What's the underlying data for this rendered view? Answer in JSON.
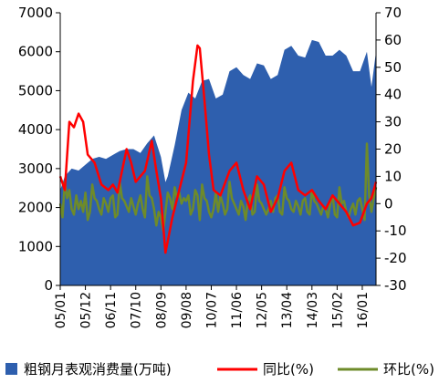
{
  "chart_data": {
    "type": "area",
    "title": "",
    "x_tick_labels": [
      "05/01",
      "05/12",
      "06/11",
      "07/10",
      "08/09",
      "09/08",
      "10/07",
      "11/06",
      "12/05",
      "13/04",
      "14/03",
      "15/02",
      "16/01"
    ],
    "x_start": "2005-01",
    "x_end": "2016-07",
    "left_axis": {
      "min": 0,
      "max": 7000,
      "ticks": [
        0,
        1000,
        2000,
        3000,
        4000,
        5000,
        6000,
        7000
      ]
    },
    "right_axis": {
      "min": -30,
      "max": 70,
      "ticks": [
        -30,
        -20,
        -10,
        0,
        10,
        20,
        30,
        40,
        50,
        60,
        70
      ]
    },
    "grid": false,
    "legend_position": "bottom",
    "series": [
      {
        "name": "粗钢月表观消费量(万吨)",
        "type": "area",
        "axis": "left",
        "color": "#2e5fae",
        "points": [
          [
            "2005-01",
            2450
          ],
          [
            "2005-03",
            2800
          ],
          [
            "2005-06",
            3000
          ],
          [
            "2005-09",
            2950
          ],
          [
            "2005-12",
            3100
          ],
          [
            "2006-03",
            3250
          ],
          [
            "2006-06",
            3300
          ],
          [
            "2006-09",
            3250
          ],
          [
            "2006-12",
            3350
          ],
          [
            "2007-03",
            3450
          ],
          [
            "2007-06",
            3500
          ],
          [
            "2007-09",
            3500
          ],
          [
            "2007-12",
            3400
          ],
          [
            "2008-03",
            3650
          ],
          [
            "2008-06",
            3850
          ],
          [
            "2008-09",
            3300
          ],
          [
            "2008-11",
            2650
          ],
          [
            "2008-12",
            2800
          ],
          [
            "2009-03",
            3600
          ],
          [
            "2009-06",
            4500
          ],
          [
            "2009-09",
            4950
          ],
          [
            "2009-12",
            4800
          ],
          [
            "2010-03",
            5250
          ],
          [
            "2010-06",
            5300
          ],
          [
            "2010-09",
            4800
          ],
          [
            "2010-12",
            4900
          ],
          [
            "2011-03",
            5500
          ],
          [
            "2011-06",
            5600
          ],
          [
            "2011-09",
            5400
          ],
          [
            "2011-12",
            5300
          ],
          [
            "2012-03",
            5700
          ],
          [
            "2012-06",
            5650
          ],
          [
            "2012-09",
            5300
          ],
          [
            "2012-12",
            5400
          ],
          [
            "2013-03",
            6050
          ],
          [
            "2013-06",
            6150
          ],
          [
            "2013-09",
            5900
          ],
          [
            "2013-12",
            5850
          ],
          [
            "2014-03",
            6300
          ],
          [
            "2014-06",
            6250
          ],
          [
            "2014-09",
            5900
          ],
          [
            "2014-12",
            5900
          ],
          [
            "2015-03",
            6050
          ],
          [
            "2015-06",
            5900
          ],
          [
            "2015-09",
            5500
          ],
          [
            "2015-12",
            5500
          ],
          [
            "2016-03",
            6000
          ],
          [
            "2016-05",
            5100
          ],
          [
            "2016-07",
            6000
          ]
        ]
      },
      {
        "name": "同比(%)",
        "type": "line",
        "axis": "right",
        "color": "#ff0000",
        "points": [
          [
            "2005-01",
            10
          ],
          [
            "2005-03",
            5
          ],
          [
            "2005-05",
            30
          ],
          [
            "2005-07",
            28
          ],
          [
            "2005-09",
            33
          ],
          [
            "2005-11",
            30
          ],
          [
            "2006-01",
            18
          ],
          [
            "2006-04",
            15
          ],
          [
            "2006-07",
            7
          ],
          [
            "2006-10",
            5
          ],
          [
            "2006-12",
            7
          ],
          [
            "2007-02",
            4
          ],
          [
            "2007-04",
            12
          ],
          [
            "2007-06",
            20
          ],
          [
            "2007-08",
            15
          ],
          [
            "2007-10",
            8
          ],
          [
            "2007-12",
            10
          ],
          [
            "2008-02",
            12
          ],
          [
            "2008-05",
            23
          ],
          [
            "2008-07",
            12
          ],
          [
            "2008-09",
            2
          ],
          [
            "2008-11",
            -18
          ],
          [
            "2009-02",
            -5
          ],
          [
            "2009-05",
            5
          ],
          [
            "2009-08",
            15
          ],
          [
            "2009-11",
            45
          ],
          [
            "2010-01",
            58
          ],
          [
            "2010-02",
            57
          ],
          [
            "2010-04",
            38
          ],
          [
            "2010-06",
            18
          ],
          [
            "2010-08",
            5
          ],
          [
            "2010-11",
            3
          ],
          [
            "2011-03",
            12
          ],
          [
            "2011-06",
            15
          ],
          [
            "2011-09",
            5
          ],
          [
            "2011-12",
            -2
          ],
          [
            "2012-03",
            10
          ],
          [
            "2012-06",
            7
          ],
          [
            "2012-09",
            -3
          ],
          [
            "2012-12",
            2
          ],
          [
            "2013-03",
            12
          ],
          [
            "2013-06",
            15
          ],
          [
            "2013-09",
            5
          ],
          [
            "2013-12",
            3
          ],
          [
            "2014-03",
            5
          ],
          [
            "2014-06",
            1
          ],
          [
            "2014-09",
            -2
          ],
          [
            "2014-12",
            3
          ],
          [
            "2015-03",
            0
          ],
          [
            "2015-06",
            -3
          ],
          [
            "2015-09",
            -8
          ],
          [
            "2015-12",
            -7
          ],
          [
            "2016-03",
            0
          ],
          [
            "2016-05",
            2
          ],
          [
            "2016-07",
            8
          ]
        ]
      },
      {
        "name": "环比(%)",
        "type": "line",
        "axis": "right",
        "color": "#6e8b2a",
        "points": [
          [
            "2005-01",
            0
          ],
          [
            "2005-02",
            -5
          ],
          [
            "2005-03",
            8
          ],
          [
            "2005-04",
            2
          ],
          [
            "2005-05",
            5
          ],
          [
            "2005-06",
            -2
          ],
          [
            "2005-07",
            -4
          ],
          [
            "2005-08",
            3
          ],
          [
            "2005-09",
            -2
          ],
          [
            "2005-10",
            1
          ],
          [
            "2005-11",
            -3
          ],
          [
            "2005-12",
            4
          ],
          [
            "2006-01",
            -6
          ],
          [
            "2006-02",
            -3
          ],
          [
            "2006-03",
            7
          ],
          [
            "2006-04",
            2
          ],
          [
            "2006-05",
            1
          ],
          [
            "2006-06",
            -2
          ],
          [
            "2006-07",
            -4
          ],
          [
            "2006-08",
            2
          ],
          [
            "2006-09",
            0
          ],
          [
            "2006-10",
            -3
          ],
          [
            "2006-11",
            2
          ],
          [
            "2006-12",
            3
          ],
          [
            "2007-01",
            -5
          ],
          [
            "2007-02",
            -4
          ],
          [
            "2007-03",
            8
          ],
          [
            "2007-04",
            2
          ],
          [
            "2007-05",
            1
          ],
          [
            "2007-06",
            -1
          ],
          [
            "2007-07",
            -3
          ],
          [
            "2007-08",
            2
          ],
          [
            "2007-09",
            -1
          ],
          [
            "2007-10",
            -4
          ],
          [
            "2007-11",
            0
          ],
          [
            "2007-12",
            3
          ],
          [
            "2008-01",
            -2
          ],
          [
            "2008-02",
            -5
          ],
          [
            "2008-03",
            10
          ],
          [
            "2008-04",
            3
          ],
          [
            "2008-05",
            2
          ],
          [
            "2008-06",
            -2
          ],
          [
            "2008-07",
            -8
          ],
          [
            "2008-08",
            -3
          ],
          [
            "2008-09",
            -5
          ],
          [
            "2008-10",
            -10
          ],
          [
            "2008-11",
            -3
          ],
          [
            "2008-12",
            4
          ],
          [
            "2009-01",
            2
          ],
          [
            "2009-02",
            -2
          ],
          [
            "2009-03",
            6
          ],
          [
            "2009-04",
            2
          ],
          [
            "2009-05",
            4
          ],
          [
            "2009-06",
            0
          ],
          [
            "2009-07",
            2
          ],
          [
            "2009-08",
            1
          ],
          [
            "2009-09",
            3
          ],
          [
            "2009-10",
            -4
          ],
          [
            "2009-11",
            -2
          ],
          [
            "2009-12",
            5
          ],
          [
            "2010-01",
            3
          ],
          [
            "2010-02",
            -6
          ],
          [
            "2010-03",
            7
          ],
          [
            "2010-04",
            2
          ],
          [
            "2010-05",
            1
          ],
          [
            "2010-06",
            -3
          ],
          [
            "2010-07",
            -5
          ],
          [
            "2010-08",
            -2
          ],
          [
            "2010-09",
            4
          ],
          [
            "2010-10",
            -3
          ],
          [
            "2010-11",
            3
          ],
          [
            "2010-12",
            0
          ],
          [
            "2011-01",
            -4
          ],
          [
            "2011-02",
            -2
          ],
          [
            "2011-03",
            8
          ],
          [
            "2011-04",
            2
          ],
          [
            "2011-05",
            0
          ],
          [
            "2011-06",
            -2
          ],
          [
            "2011-07",
            -4
          ],
          [
            "2011-08",
            1
          ],
          [
            "2011-09",
            -1
          ],
          [
            "2011-10",
            -6
          ],
          [
            "2011-11",
            1
          ],
          [
            "2011-12",
            3
          ],
          [
            "2012-01",
            -4
          ],
          [
            "2012-02",
            -3
          ],
          [
            "2012-03",
            7
          ],
          [
            "2012-04",
            1
          ],
          [
            "2012-05",
            0
          ],
          [
            "2012-06",
            -2
          ],
          [
            "2012-07",
            -4
          ],
          [
            "2012-08",
            -2
          ],
          [
            "2012-09",
            1
          ],
          [
            "2012-10",
            -3
          ],
          [
            "2012-11",
            2
          ],
          [
            "2012-12",
            3
          ],
          [
            "2013-01",
            -3
          ],
          [
            "2013-02",
            -4
          ],
          [
            "2013-03",
            6
          ],
          [
            "2013-04",
            2
          ],
          [
            "2013-05",
            1
          ],
          [
            "2013-06",
            -2
          ],
          [
            "2013-07",
            -3
          ],
          [
            "2013-08",
            1
          ],
          [
            "2013-09",
            -1
          ],
          [
            "2013-10",
            -4
          ],
          [
            "2013-11",
            1
          ],
          [
            "2013-12",
            2
          ],
          [
            "2014-01",
            -3
          ],
          [
            "2014-02",
            -4
          ],
          [
            "2014-03",
            5
          ],
          [
            "2014-04",
            1
          ],
          [
            "2014-05",
            0
          ],
          [
            "2014-06",
            -2
          ],
          [
            "2014-07",
            -4
          ],
          [
            "2014-08",
            -1
          ],
          [
            "2014-09",
            -2
          ],
          [
            "2014-10",
            -5
          ],
          [
            "2014-11",
            0
          ],
          [
            "2014-12",
            3
          ],
          [
            "2015-01",
            -4
          ],
          [
            "2015-02",
            -5
          ],
          [
            "2015-03",
            6
          ],
          [
            "2015-04",
            0
          ],
          [
            "2015-05",
            1
          ],
          [
            "2015-06",
            -3
          ],
          [
            "2015-07",
            -5
          ],
          [
            "2015-08",
            -2
          ],
          [
            "2015-09",
            0
          ],
          [
            "2015-10",
            -4
          ],
          [
            "2015-11",
            1
          ],
          [
            "2015-12",
            2
          ],
          [
            "2016-01",
            -2
          ],
          [
            "2016-02",
            -6
          ],
          [
            "2016-03",
            22
          ],
          [
            "2016-04",
            3
          ],
          [
            "2016-05",
            -3
          ],
          [
            "2016-06",
            2
          ],
          [
            "2016-07",
            6
          ]
        ]
      }
    ]
  }
}
